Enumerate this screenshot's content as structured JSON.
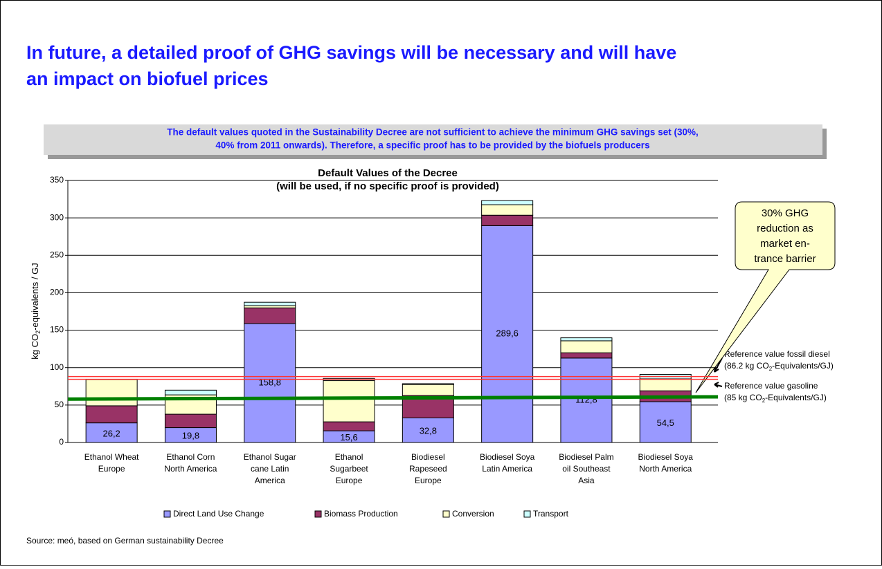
{
  "title": [
    "In future, a detailed proof of GHG savings will be necessary and will have",
    "an impact on biofuel prices"
  ],
  "subtitle": [
    "The default values quoted in the Sustainability Decree are not sufficient to achieve the minimum GHG savings set (30%,",
    "40% from 2011 onwards). Therefore, a specific proof has to be provided by the biofuels producers"
  ],
  "source": "Source: meó, based on German sustainability Decree",
  "chart_data": {
    "type": "stacked_bar",
    "title": [
      "Default Values of the Decree",
      "(will be used, if no specific proof is provided)"
    ],
    "y_label": [
      "kg CO",
      "2",
      "-equivalents / GJ"
    ],
    "categories": [
      [
        "Ethanol Wheat",
        "Europe"
      ],
      [
        "Ethanol Corn",
        "North America"
      ],
      [
        "Ethanol Sugar",
        "cane Latin",
        "America"
      ],
      [
        "Ethanol",
        "Sugarbeet",
        "Europe"
      ],
      [
        "Biodiesel",
        "Rapeseed",
        "Europe"
      ],
      [
        "Biodiesel Soya",
        "Latin America"
      ],
      [
        "Biodiesel Palm",
        "oil Southeast",
        "Asia"
      ],
      [
        "Biodiesel Soya",
        "North America"
      ]
    ],
    "series": [
      {
        "name": "Direct Land Use Change",
        "color": "#9999ff",
        "values": [
          26.2,
          19.8,
          158.8,
          15.6,
          32.8,
          289.6,
          112.8,
          54.5
        ],
        "value_labels": [
          "26,2",
          "19,8",
          "158,8",
          "15,6",
          "32,8",
          "289,6",
          "112,8",
          "54,5"
        ]
      },
      {
        "name": "Biomass Production",
        "color": "#993366",
        "values": [
          22.8,
          18,
          21,
          12,
          30,
          14,
          7,
          14.5
        ]
      },
      {
        "name": "Conversion",
        "color": "#ffffcc",
        "values": [
          35,
          25.8,
          3,
          55,
          14.7,
          14,
          16,
          16
        ]
      },
      {
        "name": "Transport",
        "color": "#ccffff",
        "values": [
          0.5,
          6.3,
          4.5,
          3,
          1,
          5.5,
          4,
          6
        ]
      }
    ],
    "ylim": [
      0,
      350
    ],
    "yticks": [
      0,
      50,
      100,
      150,
      200,
      250,
      300,
      350
    ],
    "grid": true,
    "reference_lines": [
      {
        "value": 86.2,
        "color": "#ff3333",
        "label": [
          "Reference value fossil diesel",
          "(86.2 kg CO",
          "2",
          "-Equivalents/GJ)"
        ]
      },
      {
        "values": [
          58,
          61
        ],
        "color": "#008000",
        "label": [
          "Reference value gasoline",
          "(85 kg CO",
          "2",
          "-Equivalents/GJ)"
        ]
      }
    ],
    "callout": [
      "30% GHG",
      "reduction as",
      "market en-",
      "trance barrier"
    ]
  }
}
